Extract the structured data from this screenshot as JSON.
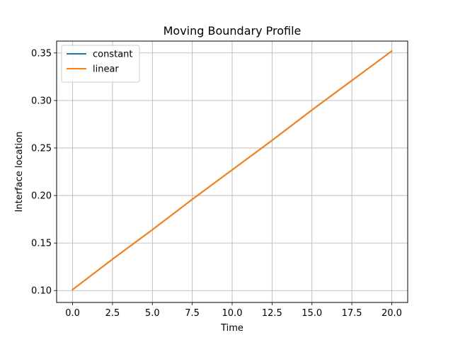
{
  "chart_data": {
    "type": "line",
    "title": "Moving Boundary Profile",
    "xlabel": "Time",
    "ylabel": "Interface location",
    "xlim": [
      -1.0,
      21.0
    ],
    "ylim": [
      0.0875,
      0.3625
    ],
    "xticks": [
      0.0,
      2.5,
      5.0,
      7.5,
      10.0,
      12.5,
      15.0,
      17.5,
      20.0
    ],
    "xtick_labels": [
      "0.0",
      "2.5",
      "5.0",
      "7.5",
      "10.0",
      "12.5",
      "15.0",
      "17.5",
      "20.0"
    ],
    "yticks": [
      0.1,
      0.15,
      0.2,
      0.25,
      0.3,
      0.35
    ],
    "ytick_labels": [
      "0.10",
      "0.15",
      "0.20",
      "0.25",
      "0.30",
      "0.35"
    ],
    "grid": true,
    "legend_position": "upper-left",
    "x": [
      0.0,
      2.5,
      5.0,
      7.5,
      10.0,
      12.5,
      15.0,
      17.5,
      20.0
    ],
    "series": [
      {
        "name": "constant",
        "color": "#1f77b4",
        "values": [
          0.101,
          0.133,
          0.164,
          0.196,
          0.227,
          0.258,
          0.29,
          0.321,
          0.352
        ]
      },
      {
        "name": "linear",
        "color": "#ff7f0e",
        "values": [
          0.101,
          0.133,
          0.164,
          0.196,
          0.227,
          0.258,
          0.29,
          0.321,
          0.352
        ]
      }
    ]
  }
}
